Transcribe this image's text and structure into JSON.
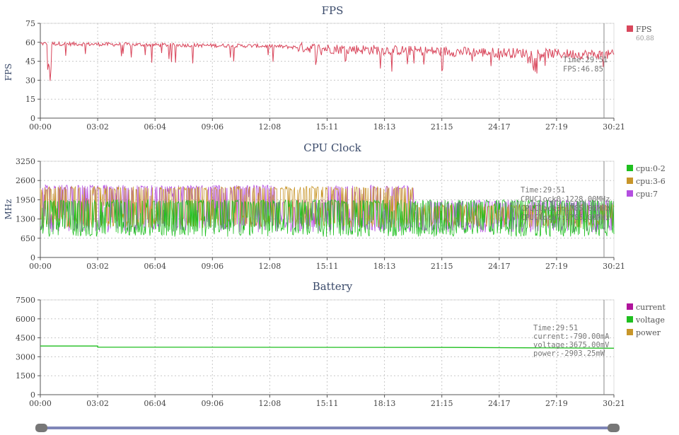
{
  "colors": {
    "fps": "#d9475c",
    "cpu_0_2": "#1fbf1f",
    "cpu_3_6": "#c8962a",
    "cpu_7": "#b44fe0",
    "current": "#b0139b",
    "voltage": "#1fbf1f",
    "power": "#c8962a",
    "slider": "#7f86b8",
    "handle": "#777777"
  },
  "x_ticks": [
    "00:00",
    "03:02",
    "06:04",
    "09:06",
    "12:08",
    "15:11",
    "18:13",
    "21:15",
    "24:17",
    "27:19",
    "30:21"
  ],
  "cursor_time": "29:51",
  "chart_data": [
    {
      "type": "line",
      "title": "FPS",
      "ylabel": "FPS",
      "ylim": [
        0,
        75
      ],
      "y_ticks": [
        "0",
        "15",
        "30",
        "45",
        "60",
        "75"
      ],
      "x_range": [
        "00:00",
        "30:21"
      ],
      "grid": true,
      "legend": "right",
      "series": [
        {
          "name": "FPS",
          "summary": "60.88",
          "baseline_segments": [
            [
              0,
              59
            ],
            [
              0.4,
              57
            ],
            [
              0.5,
              55
            ],
            [
              0.68,
              53
            ],
            [
              1.0,
              50
            ]
          ],
          "noise": 5,
          "dips": 30
        }
      ],
      "tooltip": [
        "Time:29:51",
        "FPS:46.85"
      ]
    },
    {
      "type": "line",
      "title": "CPU Clock",
      "ylabel": "MHz",
      "ylim": [
        0,
        3250
      ],
      "y_ticks": [
        "0",
        "650",
        "1300",
        "1950",
        "2600",
        "3250"
      ],
      "x_range": [
        "00:00",
        "30:21"
      ],
      "grid": true,
      "legend": "right",
      "series": [
        {
          "name": "cpu:0-2",
          "low": 700,
          "high": 1950
        },
        {
          "name": "cpu:3-6",
          "low": 1000,
          "high": 2400
        },
        {
          "name": "cpu:7",
          "low": 850,
          "high": 2450
        }
      ],
      "tooltip": [
        "Time:29:51",
        "CPUClock0:1228.00MHz",
        "CPUClock3:1785.00MHz",
        "CPUClock7:1785.00MHz"
      ]
    },
    {
      "type": "line",
      "title": "Battery",
      "ylabel": "",
      "ylim": [
        0,
        7500
      ],
      "y_ticks": [
        "0",
        "1500",
        "3000",
        "4500",
        "6000",
        "7500"
      ],
      "x_range": [
        "00:00",
        "30:21"
      ],
      "grid": true,
      "legend": "right",
      "series": [
        {
          "name": "current"
        },
        {
          "name": "voltage",
          "points": [
            [
              0,
              3850
            ],
            [
              0.1,
              3850
            ],
            [
              0.1,
              3760
            ],
            [
              0.72,
              3740
            ],
            [
              1.0,
              3675
            ]
          ]
        },
        {
          "name": "power"
        }
      ],
      "tooltip": [
        "Time:29:51",
        "current:-790.00mA",
        "voltage:3675.00mV",
        "power:-2903.25mW"
      ]
    }
  ]
}
